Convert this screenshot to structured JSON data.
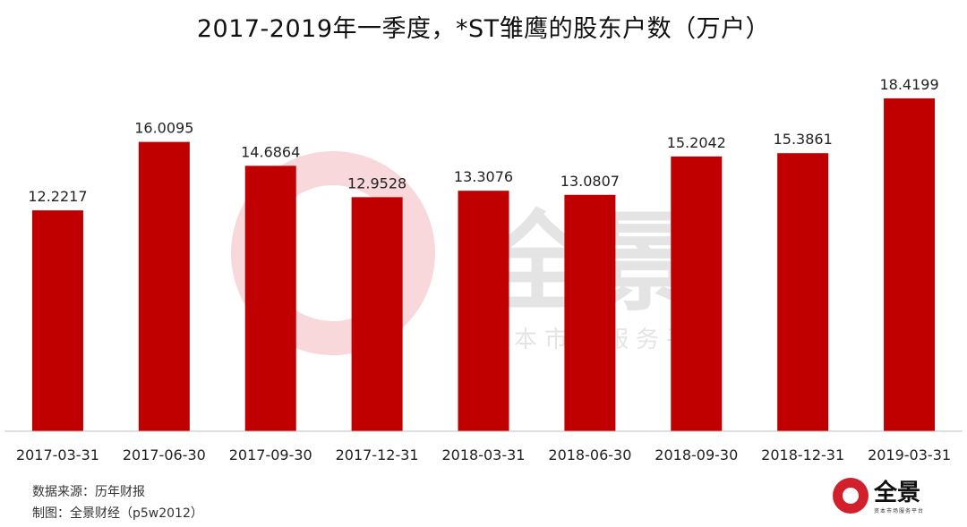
{
  "chart_data": {
    "type": "bar",
    "title": "2017-2019年一季度，*ST雏鹰的股东户数（万户）",
    "categories": [
      "2017-03-31",
      "2017-06-30",
      "2017-09-30",
      "2017-12-31",
      "2018-03-31",
      "2018-06-30",
      "2018-09-30",
      "2018-12-31",
      "2019-03-31"
    ],
    "values": [
      12.2217,
      16.0095,
      14.6864,
      12.9528,
      13.3076,
      13.0807,
      15.2042,
      15.3861,
      18.4199
    ],
    "value_labels": [
      "12.2217",
      "16.0095",
      "14.6864",
      "12.9528",
      "13.3076",
      "13.0807",
      "15.2042",
      "15.3861",
      "18.4199"
    ],
    "ylim": [
      0,
      20
    ],
    "grid": false,
    "bar_color": "#c00000"
  },
  "footer": {
    "source": "数据来源：历年财报",
    "maker": "制图：全景财经（p5w2012）"
  },
  "watermark": {
    "brand": "全景",
    "tagline": "资本市场服务平台",
    "color": "#f2b8bd"
  },
  "logo": {
    "brand": "全景",
    "tagline": "资本市场服务平台",
    "color": "#d1202b"
  }
}
